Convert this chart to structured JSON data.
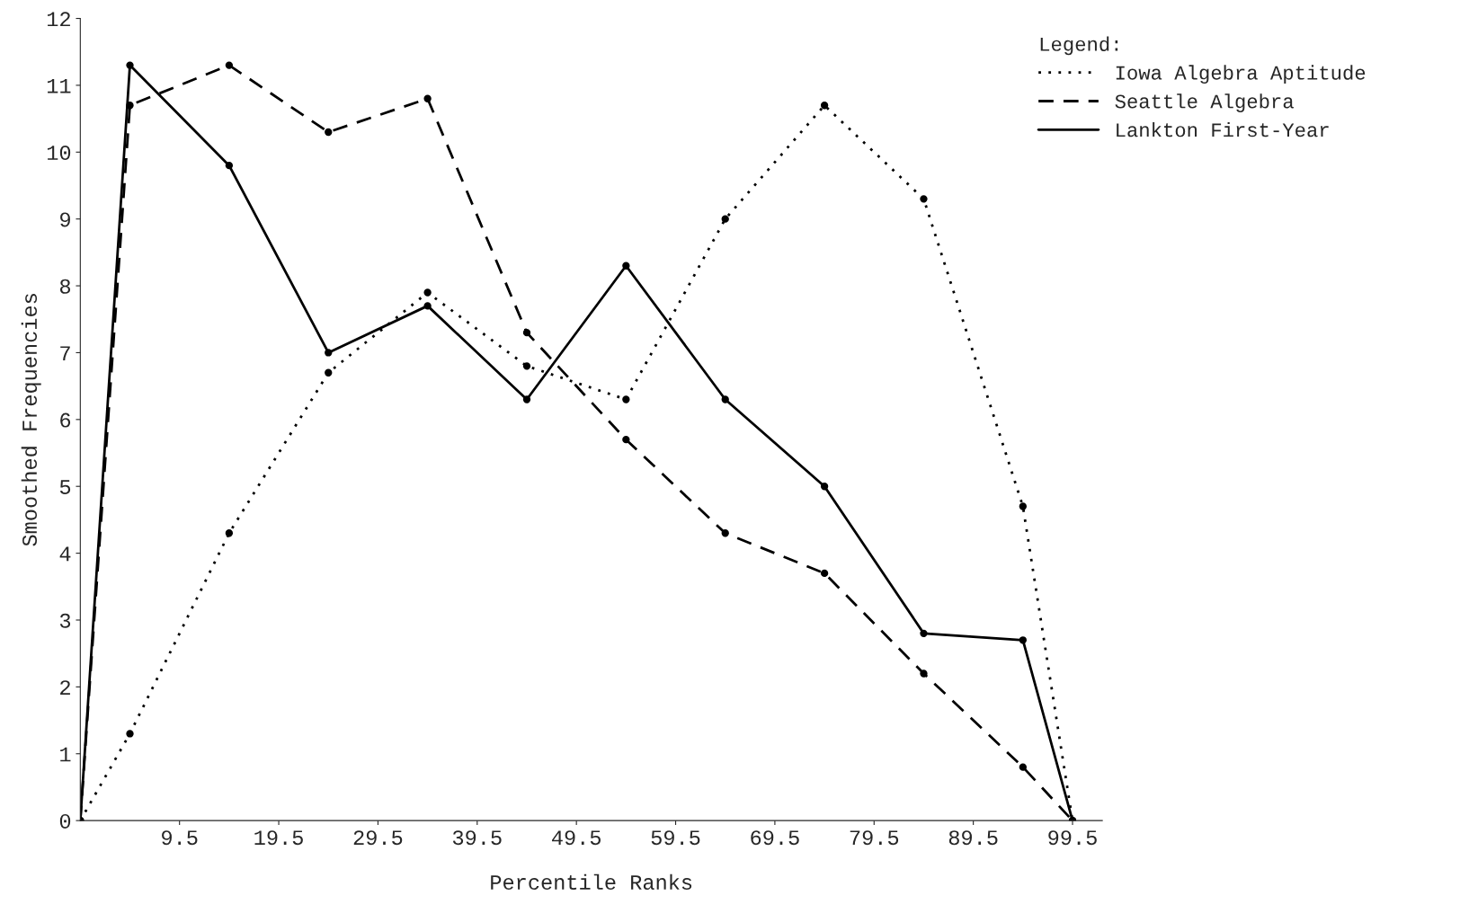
{
  "chart_data": {
    "type": "line",
    "xlabel": "Percentile Ranks",
    "ylabel": "Smoothed Frequencies",
    "legend_title": "Legend:",
    "x": [
      -0.5,
      4.5,
      14.5,
      24.5,
      34.5,
      44.5,
      54.5,
      64.5,
      74.5,
      84.5,
      94.5,
      99.5
    ],
    "series": [
      {
        "name": "Iowa Algebra Aptitude",
        "color": "#000000",
        "line_style": "dotted",
        "values": [
          0,
          1.3,
          4.3,
          6.7,
          7.9,
          6.8,
          6.3,
          9.0,
          10.7,
          9.3,
          4.7,
          0
        ]
      },
      {
        "name": "Seattle Algebra",
        "color": "#000000",
        "line_style": "dashed",
        "values": [
          0,
          10.7,
          11.3,
          10.3,
          10.8,
          7.3,
          5.7,
          4.3,
          3.7,
          2.2,
          0.8,
          0
        ]
      },
      {
        "name": "Lankton First-Year",
        "color": "#000000",
        "line_style": "solid",
        "values": [
          0,
          11.3,
          9.8,
          7.0,
          7.7,
          6.3,
          8.3,
          6.3,
          5.0,
          2.8,
          2.7,
          0
        ]
      }
    ],
    "xlim": [
      -0.5,
      102.5
    ],
    "xticks": [
      9.5,
      19.5,
      29.5,
      39.5,
      49.5,
      59.5,
      69.5,
      79.5,
      89.5,
      99.5
    ],
    "ylim": [
      0,
      12
    ],
    "yticks": [
      0,
      1,
      2,
      3,
      4,
      5,
      6,
      7,
      8,
      9,
      10,
      11,
      12
    ],
    "marker": "circle",
    "grid": false,
    "legend": "top right"
  }
}
